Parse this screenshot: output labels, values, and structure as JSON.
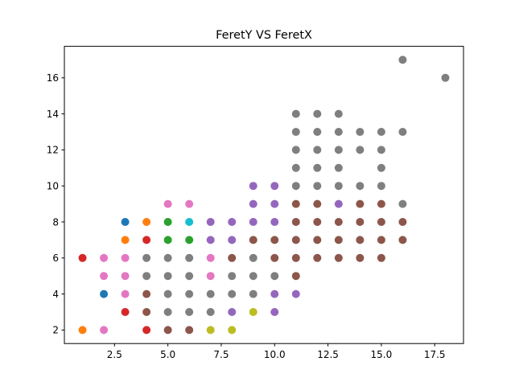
{
  "chart_data": {
    "type": "scatter",
    "title": "FeretY VS FeretX",
    "xlabel": "",
    "ylabel": "",
    "xlim": [
      0.15,
      18.85
    ],
    "ylim": [
      1.25,
      17.75
    ],
    "x_ticks": [
      2.5,
      5.0,
      7.5,
      10.0,
      12.5,
      15.0,
      17.5
    ],
    "x_tick_labels": [
      "2.5",
      "5.0",
      "7.5",
      "10.0",
      "12.5",
      "15.0",
      "17.5"
    ],
    "y_ticks": [
      2,
      4,
      6,
      8,
      10,
      12,
      14,
      16
    ],
    "y_tick_labels": [
      "2",
      "4",
      "6",
      "8",
      "10",
      "12",
      "14",
      "16"
    ],
    "grid": false,
    "legend": "none",
    "colors": {
      "blue": "#1f77b4",
      "orange": "#ff7f0e",
      "green": "#2ca02c",
      "red": "#d62728",
      "purple": "#9467bd",
      "brown": "#8c564b",
      "pink": "#e377c2",
      "gray": "#7f7f7f",
      "olive": "#bcbd22",
      "cyan": "#17becf"
    },
    "points": [
      {
        "x": 1,
        "y": 2,
        "color": "orange"
      },
      {
        "x": 1,
        "y": 6,
        "color": "red"
      },
      {
        "x": 2,
        "y": 2,
        "color": "pink"
      },
      {
        "x": 2,
        "y": 4,
        "color": "blue"
      },
      {
        "x": 2,
        "y": 5,
        "color": "pink"
      },
      {
        "x": 2,
        "y": 6,
        "color": "pink"
      },
      {
        "x": 3,
        "y": 3,
        "color": "red"
      },
      {
        "x": 3,
        "y": 4,
        "color": "pink"
      },
      {
        "x": 3,
        "y": 5,
        "color": "pink"
      },
      {
        "x": 3,
        "y": 6,
        "color": "pink"
      },
      {
        "x": 3,
        "y": 7,
        "color": "orange"
      },
      {
        "x": 3,
        "y": 8,
        "color": "blue"
      },
      {
        "x": 4,
        "y": 2,
        "color": "red"
      },
      {
        "x": 4,
        "y": 3,
        "color": "brown"
      },
      {
        "x": 4,
        "y": 4,
        "color": "brown"
      },
      {
        "x": 4,
        "y": 5,
        "color": "gray"
      },
      {
        "x": 4,
        "y": 6,
        "color": "gray"
      },
      {
        "x": 4,
        "y": 7,
        "color": "red"
      },
      {
        "x": 4,
        "y": 8,
        "color": "orange"
      },
      {
        "x": 5,
        "y": 2,
        "color": "brown"
      },
      {
        "x": 5,
        "y": 3,
        "color": "gray"
      },
      {
        "x": 5,
        "y": 4,
        "color": "gray"
      },
      {
        "x": 5,
        "y": 5,
        "color": "gray"
      },
      {
        "x": 5,
        "y": 6,
        "color": "gray"
      },
      {
        "x": 5,
        "y": 7,
        "color": "green"
      },
      {
        "x": 5,
        "y": 8,
        "color": "green"
      },
      {
        "x": 5,
        "y": 9,
        "color": "pink"
      },
      {
        "x": 6,
        "y": 2,
        "color": "brown"
      },
      {
        "x": 6,
        "y": 3,
        "color": "gray"
      },
      {
        "x": 6,
        "y": 4,
        "color": "gray"
      },
      {
        "x": 6,
        "y": 5,
        "color": "gray"
      },
      {
        "x": 6,
        "y": 6,
        "color": "gray"
      },
      {
        "x": 6,
        "y": 7,
        "color": "green"
      },
      {
        "x": 6,
        "y": 8,
        "color": "cyan"
      },
      {
        "x": 6,
        "y": 9,
        "color": "pink"
      },
      {
        "x": 7,
        "y": 2,
        "color": "olive"
      },
      {
        "x": 7,
        "y": 3,
        "color": "gray"
      },
      {
        "x": 7,
        "y": 4,
        "color": "gray"
      },
      {
        "x": 7,
        "y": 5,
        "color": "pink"
      },
      {
        "x": 7,
        "y": 6,
        "color": "pink"
      },
      {
        "x": 7,
        "y": 7,
        "color": "purple"
      },
      {
        "x": 7,
        "y": 8,
        "color": "purple"
      },
      {
        "x": 8,
        "y": 2,
        "color": "olive"
      },
      {
        "x": 8,
        "y": 3,
        "color": "purple"
      },
      {
        "x": 8,
        "y": 4,
        "color": "gray"
      },
      {
        "x": 8,
        "y": 5,
        "color": "gray"
      },
      {
        "x": 8,
        "y": 6,
        "color": "brown"
      },
      {
        "x": 8,
        "y": 7,
        "color": "purple"
      },
      {
        "x": 8,
        "y": 8,
        "color": "purple"
      },
      {
        "x": 9,
        "y": 3,
        "color": "olive"
      },
      {
        "x": 9,
        "y": 4,
        "color": "gray"
      },
      {
        "x": 9,
        "y": 5,
        "color": "gray"
      },
      {
        "x": 9,
        "y": 6,
        "color": "gray"
      },
      {
        "x": 9,
        "y": 7,
        "color": "brown"
      },
      {
        "x": 9,
        "y": 8,
        "color": "purple"
      },
      {
        "x": 9,
        "y": 9,
        "color": "purple"
      },
      {
        "x": 9,
        "y": 10,
        "color": "purple"
      },
      {
        "x": 10,
        "y": 3,
        "color": "purple"
      },
      {
        "x": 10,
        "y": 4,
        "color": "purple"
      },
      {
        "x": 10,
        "y": 5,
        "color": "gray"
      },
      {
        "x": 10,
        "y": 6,
        "color": "brown"
      },
      {
        "x": 10,
        "y": 7,
        "color": "brown"
      },
      {
        "x": 10,
        "y": 8,
        "color": "purple"
      },
      {
        "x": 10,
        "y": 9,
        "color": "purple"
      },
      {
        "x": 10,
        "y": 10,
        "color": "purple"
      },
      {
        "x": 11,
        "y": 4,
        "color": "purple"
      },
      {
        "x": 11,
        "y": 5,
        "color": "brown"
      },
      {
        "x": 11,
        "y": 6,
        "color": "brown"
      },
      {
        "x": 11,
        "y": 7,
        "color": "brown"
      },
      {
        "x": 11,
        "y": 8,
        "color": "brown"
      },
      {
        "x": 11,
        "y": 9,
        "color": "brown"
      },
      {
        "x": 11,
        "y": 10,
        "color": "gray"
      },
      {
        "x": 11,
        "y": 11,
        "color": "gray"
      },
      {
        "x": 11,
        "y": 12,
        "color": "gray"
      },
      {
        "x": 11,
        "y": 13,
        "color": "gray"
      },
      {
        "x": 11,
        "y": 14,
        "color": "gray"
      },
      {
        "x": 12,
        "y": 6,
        "color": "brown"
      },
      {
        "x": 12,
        "y": 7,
        "color": "brown"
      },
      {
        "x": 12,
        "y": 8,
        "color": "brown"
      },
      {
        "x": 12,
        "y": 9,
        "color": "brown"
      },
      {
        "x": 12,
        "y": 10,
        "color": "gray"
      },
      {
        "x": 12,
        "y": 11,
        "color": "gray"
      },
      {
        "x": 12,
        "y": 12,
        "color": "gray"
      },
      {
        "x": 12,
        "y": 13,
        "color": "gray"
      },
      {
        "x": 12,
        "y": 14,
        "color": "gray"
      },
      {
        "x": 13,
        "y": 6,
        "color": "brown"
      },
      {
        "x": 13,
        "y": 7,
        "color": "brown"
      },
      {
        "x": 13,
        "y": 8,
        "color": "brown"
      },
      {
        "x": 13,
        "y": 9,
        "color": "purple"
      },
      {
        "x": 13,
        "y": 10,
        "color": "gray"
      },
      {
        "x": 13,
        "y": 11,
        "color": "gray"
      },
      {
        "x": 13,
        "y": 12,
        "color": "gray"
      },
      {
        "x": 13,
        "y": 13,
        "color": "gray"
      },
      {
        "x": 13,
        "y": 14,
        "color": "gray"
      },
      {
        "x": 14,
        "y": 6,
        "color": "brown"
      },
      {
        "x": 14,
        "y": 7,
        "color": "brown"
      },
      {
        "x": 14,
        "y": 8,
        "color": "brown"
      },
      {
        "x": 14,
        "y": 9,
        "color": "brown"
      },
      {
        "x": 14,
        "y": 10,
        "color": "gray"
      },
      {
        "x": 14,
        "y": 12,
        "color": "gray"
      },
      {
        "x": 14,
        "y": 13,
        "color": "gray"
      },
      {
        "x": 15,
        "y": 6,
        "color": "brown"
      },
      {
        "x": 15,
        "y": 7,
        "color": "brown"
      },
      {
        "x": 15,
        "y": 8,
        "color": "brown"
      },
      {
        "x": 15,
        "y": 9,
        "color": "brown"
      },
      {
        "x": 15,
        "y": 10,
        "color": "gray"
      },
      {
        "x": 15,
        "y": 11,
        "color": "gray"
      },
      {
        "x": 15,
        "y": 12,
        "color": "gray"
      },
      {
        "x": 15,
        "y": 13,
        "color": "gray"
      },
      {
        "x": 16,
        "y": 7,
        "color": "brown"
      },
      {
        "x": 16,
        "y": 8,
        "color": "brown"
      },
      {
        "x": 16,
        "y": 9,
        "color": "gray"
      },
      {
        "x": 16,
        "y": 13,
        "color": "gray"
      },
      {
        "x": 16,
        "y": 17,
        "color": "gray"
      },
      {
        "x": 18,
        "y": 16,
        "color": "gray"
      }
    ]
  }
}
